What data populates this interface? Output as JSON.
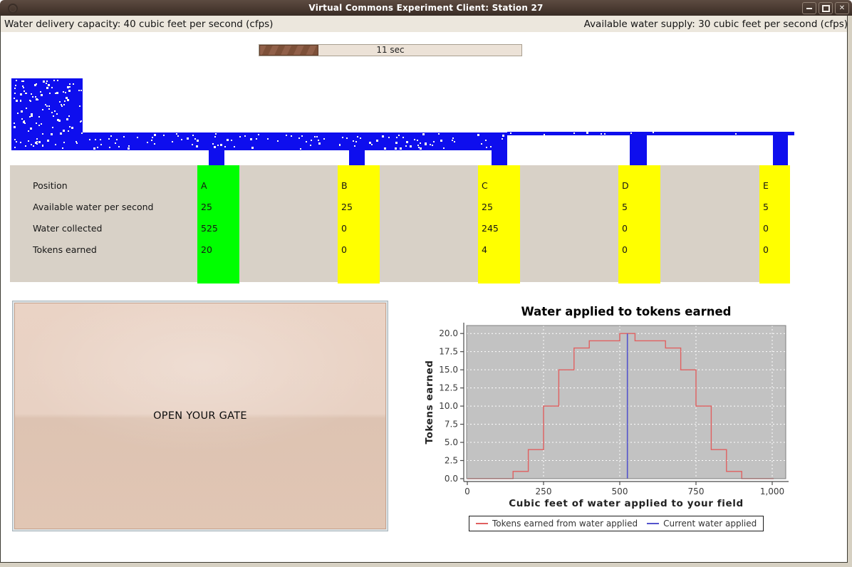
{
  "window": {
    "title": "Virtual Commons Experiment Client: Station 27",
    "close_glyph": "✕"
  },
  "info_bar": {
    "left": "Water delivery capacity: 40 cubic feet per second (cfps)",
    "right": "Available water supply: 30 cubic feet per second (cfps)"
  },
  "timer": {
    "label": "11 sec",
    "progress_fraction": 0.225
  },
  "canal": {
    "water_color": "#0e0eee",
    "particle_color": "#fffdf2"
  },
  "status_table": {
    "row_labels": [
      "Position",
      "Available water per second",
      "Water collected",
      "Tokens earned"
    ],
    "columns": [
      {
        "position": "A",
        "available_water_per_second": "25",
        "water_collected": "525",
        "tokens_earned": "20",
        "highlight": "#00ff00"
      },
      {
        "position": "B",
        "available_water_per_second": "25",
        "water_collected": "0",
        "tokens_earned": "0",
        "highlight": "#ffff00"
      },
      {
        "position": "C",
        "available_water_per_second": "25",
        "water_collected": "245",
        "tokens_earned": "4",
        "highlight": "#ffff00"
      },
      {
        "position": "D",
        "available_water_per_second": "5",
        "water_collected": "0",
        "tokens_earned": "0",
        "highlight": "#ffff00"
      },
      {
        "position": "E",
        "available_water_per_second": "5",
        "water_collected": "0",
        "tokens_earned": "0",
        "highlight": "#ffff00"
      }
    ]
  },
  "gate_button": {
    "label": "OPEN YOUR GATE"
  },
  "chart_data": {
    "type": "line",
    "title": "Water applied to tokens earned",
    "xlabel": "Cubic feet of water applied to your field",
    "ylabel": "Tokens earned",
    "x_ticks": [
      0,
      250,
      500,
      750,
      1000
    ],
    "x_tick_labels": [
      "0",
      "250",
      "500",
      "750",
      "1,000"
    ],
    "y_ticks": [
      0,
      2.5,
      5,
      7.5,
      10,
      12.5,
      15,
      17.5,
      20
    ],
    "y_tick_labels": [
      "0.0",
      "2.5",
      "5.0",
      "7.5",
      "10.0",
      "12.5",
      "15.0",
      "17.5",
      "20.0"
    ],
    "xlim": [
      0,
      1045
    ],
    "ylim": [
      0,
      21.2
    ],
    "grid": "white-dashed",
    "plot_bg": "#c2c2c2",
    "legend_position": "bottom",
    "series": [
      {
        "name": "Tokens earned from water applied",
        "type": "step",
        "color": "#e06060",
        "points": [
          [
            0,
            0
          ],
          [
            150,
            0
          ],
          [
            150,
            1
          ],
          [
            200,
            1
          ],
          [
            200,
            4
          ],
          [
            250,
            4
          ],
          [
            250,
            10
          ],
          [
            300,
            10
          ],
          [
            300,
            15
          ],
          [
            350,
            15
          ],
          [
            350,
            18
          ],
          [
            400,
            18
          ],
          [
            400,
            19
          ],
          [
            500,
            19
          ],
          [
            500,
            20
          ],
          [
            550,
            20
          ],
          [
            550,
            19
          ],
          [
            650,
            19
          ],
          [
            650,
            18
          ],
          [
            700,
            18
          ],
          [
            700,
            15
          ],
          [
            750,
            15
          ],
          [
            750,
            10
          ],
          [
            800,
            10
          ],
          [
            800,
            4
          ],
          [
            850,
            4
          ],
          [
            850,
            1
          ],
          [
            900,
            1
          ],
          [
            900,
            0
          ],
          [
            1005,
            0
          ]
        ]
      },
      {
        "name": "Current water applied",
        "type": "vline",
        "color": "#5353cc",
        "x": 525,
        "y_top": 20
      }
    ]
  }
}
